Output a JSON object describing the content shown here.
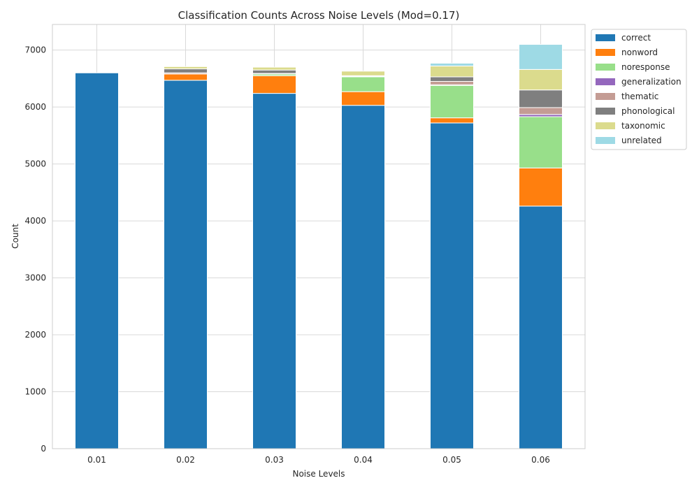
{
  "chart_data": {
    "type": "bar",
    "stacked": true,
    "title": "Classification Counts Across Noise Levels (Mod=0.17)",
    "xlabel": "Noise Levels",
    "ylabel": "Count",
    "categories": [
      "0.01",
      "0.02",
      "0.03",
      "0.04",
      "0.05",
      "0.06"
    ],
    "ylim": [
      0,
      7450
    ],
    "yticks": [
      0,
      1000,
      2000,
      3000,
      4000,
      5000,
      6000,
      7000
    ],
    "grid": true,
    "legend_position": "outside-right",
    "series": [
      {
        "name": "correct",
        "color": "#1f77b4",
        "values": [
          6600,
          6470,
          6240,
          6030,
          5720,
          4260
        ]
      },
      {
        "name": "nonword",
        "color": "#ff7f0e",
        "values": [
          0,
          110,
          310,
          240,
          90,
          670
        ]
      },
      {
        "name": "noresponse",
        "color": "#98df8a",
        "values": [
          0,
          0,
          30,
          260,
          570,
          900
        ]
      },
      {
        "name": "generalization",
        "color": "#9467bd",
        "values": [
          0,
          0,
          0,
          0,
          10,
          40
        ]
      },
      {
        "name": "thematic",
        "color": "#c49c94",
        "values": [
          0,
          20,
          10,
          10,
          60,
          120
        ]
      },
      {
        "name": "phonological",
        "color": "#7f7f7f",
        "values": [
          0,
          70,
          60,
          10,
          80,
          310
        ]
      },
      {
        "name": "taxonomic",
        "color": "#dbdb8d",
        "values": [
          0,
          40,
          50,
          80,
          190,
          360
        ]
      },
      {
        "name": "unrelated",
        "color": "#9edae5",
        "values": [
          0,
          0,
          0,
          0,
          50,
          440
        ]
      }
    ]
  }
}
